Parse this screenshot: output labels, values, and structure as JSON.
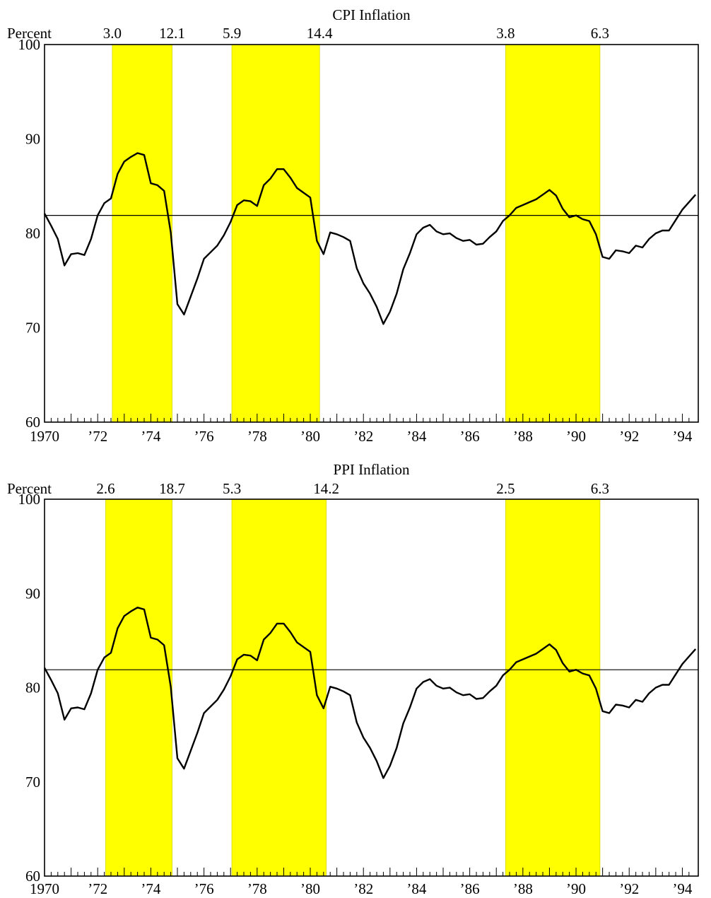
{
  "chart_data": [
    {
      "type": "line",
      "title": "CPI Inflation",
      "ylabel": "Percent",
      "ylim": [
        60,
        100
      ],
      "yticks": [
        "100",
        "90",
        "80",
        "70",
        "60"
      ],
      "xlim": [
        1970,
        1994.6
      ],
      "xticks": [
        "1970",
        "’72",
        "’74",
        "’76",
        "’78",
        "’80",
        "’82",
        "’84",
        "’86",
        "’88",
        "’90",
        "’92",
        "’94"
      ],
      "reference_line": 81.9,
      "shaded_periods": [
        {
          "start": 1972.55,
          "end": 1974.8,
          "start_label": "3.0",
          "end_label": "12.1"
        },
        {
          "start": 1977.05,
          "end": 1980.35,
          "start_label": "5.9",
          "end_label": "14.4"
        },
        {
          "start": 1987.35,
          "end": 1990.9,
          "start_label": "3.8",
          "end_label": "6.3"
        }
      ],
      "shade_color": "#ffff00",
      "series": [
        {
          "x": [
            1970,
            1970.25,
            1970.5,
            1970.75,
            1971,
            1971.25,
            1971.5,
            1971.75,
            1972,
            1972.25,
            1972.5,
            1972.75,
            1973,
            1973.25,
            1973.5,
            1973.75,
            1974,
            1974.25,
            1974.5,
            1974.75,
            1975,
            1975.25,
            1975.5,
            1975.75,
            1976,
            1976.25,
            1976.5,
            1976.75,
            1977,
            1977.25,
            1977.5,
            1977.75,
            1978,
            1978.25,
            1978.5,
            1978.75,
            1979,
            1979.25,
            1979.5,
            1979.75,
            1980,
            1980.25,
            1980.5,
            1980.75,
            1981,
            1981.25,
            1981.5,
            1981.75,
            1982,
            1982.25,
            1982.5,
            1982.75,
            1983,
            1983.25,
            1983.5,
            1983.75,
            1984,
            1984.25,
            1984.5,
            1984.75,
            1985,
            1985.25,
            1985.5,
            1985.75,
            1986,
            1986.25,
            1986.5,
            1986.75,
            1987,
            1987.25,
            1987.5,
            1987.75,
            1988,
            1988.25,
            1988.5,
            1988.75,
            1989,
            1989.25,
            1989.5,
            1989.75,
            1990,
            1990.25,
            1990.5,
            1990.75,
            1991,
            1991.25,
            1991.5,
            1991.75,
            1992,
            1992.25,
            1992.5,
            1992.75,
            1993,
            1993.25,
            1993.5,
            1993.75,
            1994,
            1994.25,
            1994.5
          ],
          "y": [
            82.1,
            80.8,
            79.4,
            76.6,
            77.8,
            77.9,
            77.7,
            79.4,
            81.9,
            83.2,
            83.7,
            86.3,
            87.6,
            88.1,
            88.5,
            88.3,
            85.3,
            85.1,
            84.5,
            80.1,
            72.5,
            71.4,
            73.3,
            75.2,
            77.3,
            78.0,
            78.7,
            79.8,
            81.2,
            83.0,
            83.5,
            83.4,
            82.9,
            85.1,
            85.8,
            86.8,
            86.8,
            85.9,
            84.8,
            84.3,
            83.8,
            79.2,
            77.8,
            80.1,
            79.9,
            79.6,
            79.2,
            76.3,
            74.7,
            73.6,
            72.2,
            70.4,
            71.7,
            73.6,
            76.2,
            77.9,
            79.9,
            80.6,
            80.9,
            80.2,
            79.9,
            80.0,
            79.5,
            79.2,
            79.3,
            78.8,
            78.9,
            79.6,
            80.2,
            81.3,
            81.9,
            82.7,
            83.0,
            83.3,
            83.6,
            84.1,
            84.6,
            84.0,
            82.6,
            81.7,
            81.9,
            81.5,
            81.3,
            79.9,
            77.5,
            77.3,
            78.2,
            78.1,
            77.9,
            78.7,
            78.5,
            79.4,
            80.0,
            80.3,
            80.3,
            81.4,
            82.5,
            83.3,
            84.1
          ]
        }
      ]
    },
    {
      "type": "line",
      "title": "PPI  Inflation",
      "ylabel": "Percent",
      "ylim": [
        60,
        100
      ],
      "yticks": [
        "100",
        "90",
        "80",
        "70",
        "60"
      ],
      "xlim": [
        1970,
        1994.6
      ],
      "xticks": [
        "1970",
        "’72",
        "’74",
        "’76",
        "’78",
        "’80",
        "’82",
        "’84",
        "’86",
        "’88",
        "’90",
        "’92",
        "’94"
      ],
      "reference_line": 81.9,
      "shaded_periods": [
        {
          "start": 1972.3,
          "end": 1974.8,
          "start_label": "2.6",
          "end_label": "18.7"
        },
        {
          "start": 1977.05,
          "end": 1980.6,
          "start_label": "5.3",
          "end_label": "14.2"
        },
        {
          "start": 1987.35,
          "end": 1990.9,
          "start_label": "2.5",
          "end_label": "6.3"
        }
      ],
      "shade_color": "#ffff00",
      "series": [
        {
          "x": [
            1970,
            1970.25,
            1970.5,
            1970.75,
            1971,
            1971.25,
            1971.5,
            1971.75,
            1972,
            1972.25,
            1972.5,
            1972.75,
            1973,
            1973.25,
            1973.5,
            1973.75,
            1974,
            1974.25,
            1974.5,
            1974.75,
            1975,
            1975.25,
            1975.5,
            1975.75,
            1976,
            1976.25,
            1976.5,
            1976.75,
            1977,
            1977.25,
            1977.5,
            1977.75,
            1978,
            1978.25,
            1978.5,
            1978.75,
            1979,
            1979.25,
            1979.5,
            1979.75,
            1980,
            1980.25,
            1980.5,
            1980.75,
            1981,
            1981.25,
            1981.5,
            1981.75,
            1982,
            1982.25,
            1982.5,
            1982.75,
            1983,
            1983.25,
            1983.5,
            1983.75,
            1984,
            1984.25,
            1984.5,
            1984.75,
            1985,
            1985.25,
            1985.5,
            1985.75,
            1986,
            1986.25,
            1986.5,
            1986.75,
            1987,
            1987.25,
            1987.5,
            1987.75,
            1988,
            1988.25,
            1988.5,
            1988.75,
            1989,
            1989.25,
            1989.5,
            1989.75,
            1990,
            1990.25,
            1990.5,
            1990.75,
            1991,
            1991.25,
            1991.5,
            1991.75,
            1992,
            1992.25,
            1992.5,
            1992.75,
            1993,
            1993.25,
            1993.5,
            1993.75,
            1994,
            1994.25,
            1994.5
          ],
          "y": [
            82.1,
            80.8,
            79.4,
            76.6,
            77.8,
            77.9,
            77.7,
            79.4,
            81.9,
            83.2,
            83.7,
            86.3,
            87.6,
            88.1,
            88.5,
            88.3,
            85.3,
            85.1,
            84.5,
            80.1,
            72.5,
            71.4,
            73.3,
            75.2,
            77.3,
            78.0,
            78.7,
            79.8,
            81.2,
            83.0,
            83.5,
            83.4,
            82.9,
            85.1,
            85.8,
            86.8,
            86.8,
            85.9,
            84.8,
            84.3,
            83.8,
            79.2,
            77.8,
            80.1,
            79.9,
            79.6,
            79.2,
            76.3,
            74.7,
            73.6,
            72.2,
            70.4,
            71.7,
            73.6,
            76.2,
            77.9,
            79.9,
            80.6,
            80.9,
            80.2,
            79.9,
            80.0,
            79.5,
            79.2,
            79.3,
            78.8,
            78.9,
            79.6,
            80.2,
            81.3,
            81.9,
            82.7,
            83.0,
            83.3,
            83.6,
            84.1,
            84.6,
            84.0,
            82.6,
            81.7,
            81.9,
            81.5,
            81.3,
            79.9,
            77.5,
            77.3,
            78.2,
            78.1,
            77.9,
            78.7,
            78.5,
            79.4,
            80.0,
            80.3,
            80.3,
            81.4,
            82.5,
            83.3,
            84.1
          ]
        }
      ]
    }
  ]
}
